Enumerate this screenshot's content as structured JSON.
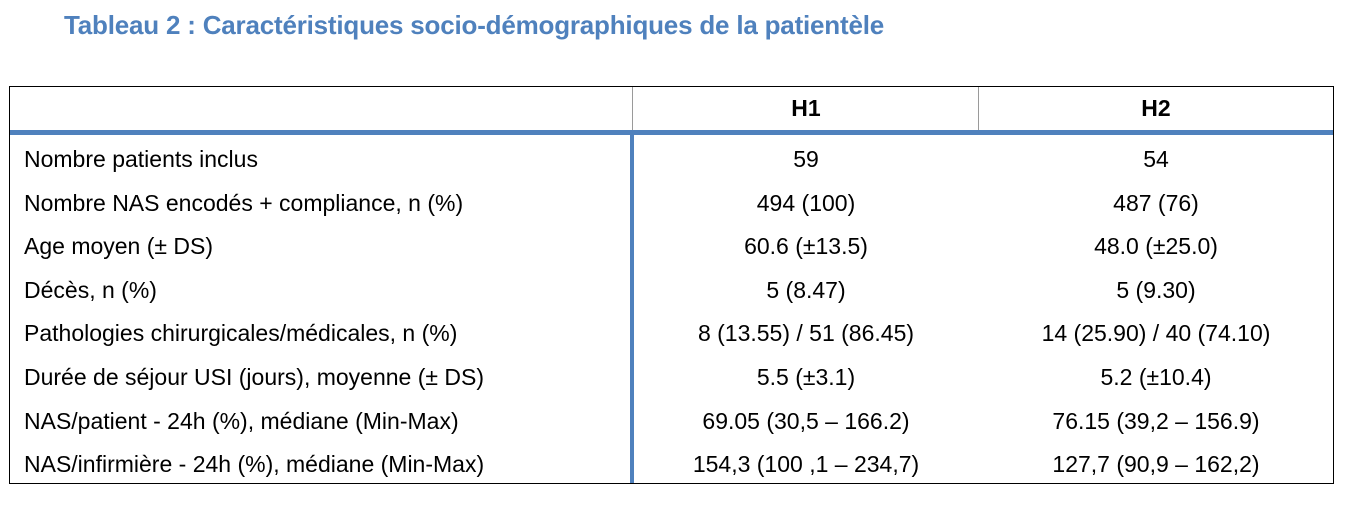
{
  "title": "Tableau 2 : Caractéristiques socio-démographiques de la patientèle",
  "colors": {
    "accent": "#4f81bd",
    "text": "#000000",
    "border": "#000000"
  },
  "table": {
    "headers": [
      "",
      "H1",
      "H2"
    ],
    "rows": [
      {
        "label": "Nombre patients inclus",
        "h1": "59",
        "h2": "54"
      },
      {
        "label": "Nombre NAS encodés + compliance, n (%)",
        "h1": "494 (100)",
        "h2": "487 (76)"
      },
      {
        "label": "Age moyen (± DS)",
        "h1": "60.6 (±13.5)",
        "h2": "48.0 (±25.0)"
      },
      {
        "label": "Décès, n (%)",
        "h1": "5 (8.47)",
        "h2": "5 (9.30)"
      },
      {
        "label": "Pathologies chirurgicales/médicales, n (%)",
        "h1": "8 (13.55) / 51 (86.45)",
        "h2": "14 (25.90) / 40 (74.10)"
      },
      {
        "label": "Durée de séjour USI (jours), moyenne (± DS)",
        "h1": "5.5 (±3.1)",
        "h2": "5.2 (±10.4)"
      },
      {
        "label": "NAS/patient -  24h (%), médiane (Min-Max)",
        "h1": "69.05 (30,5 – 166.2)",
        "h2": "76.15 (39,2 – 156.9)"
      },
      {
        "label": "NAS/infirmière - 24h (%),  médiane (Min-Max)",
        "h1": "154,3 (100 ,1 – 234,7)",
        "h2": "127,7 (90,9 – 162,2)"
      }
    ]
  }
}
